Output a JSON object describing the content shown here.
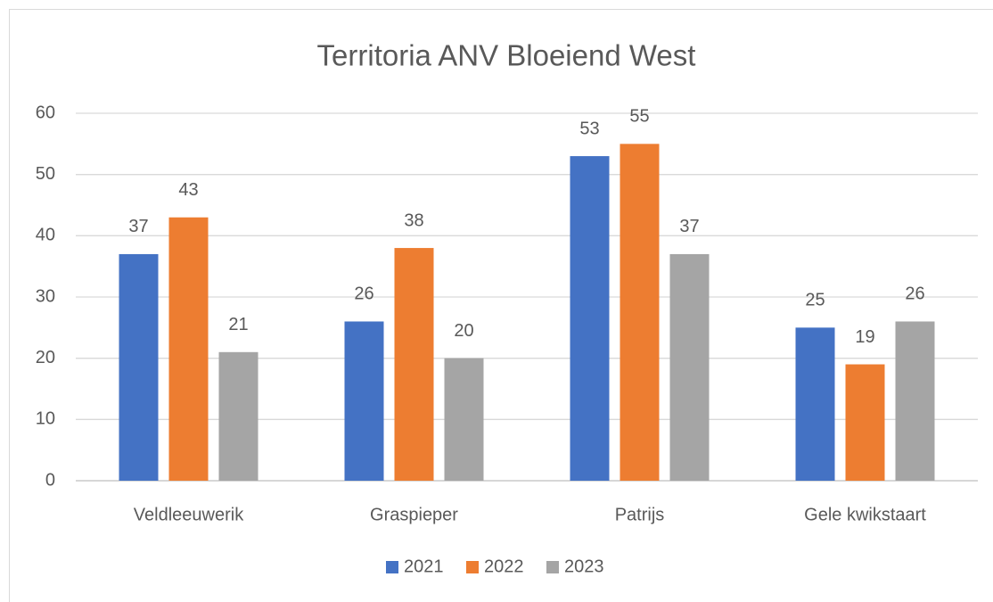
{
  "chart_data": {
    "type": "bar",
    "title": "Territoria ANV Bloeiend West",
    "categories": [
      "Veldleeuwerik",
      "Graspieper",
      "Patrijs",
      "Gele kwikstaart"
    ],
    "series": [
      {
        "name": "2021",
        "color": "#4472c4",
        "values": [
          37,
          26,
          53,
          25
        ]
      },
      {
        "name": "2022",
        "color": "#ed7d31",
        "values": [
          43,
          38,
          55,
          19
        ]
      },
      {
        "name": "2023",
        "color": "#a5a5a5",
        "values": [
          21,
          20,
          37,
          26
        ]
      }
    ],
    "ylim": [
      0,
      60
    ],
    "yticks": [
      0,
      10,
      20,
      30,
      40,
      50,
      60
    ],
    "grid": true,
    "legend": "bottom"
  }
}
